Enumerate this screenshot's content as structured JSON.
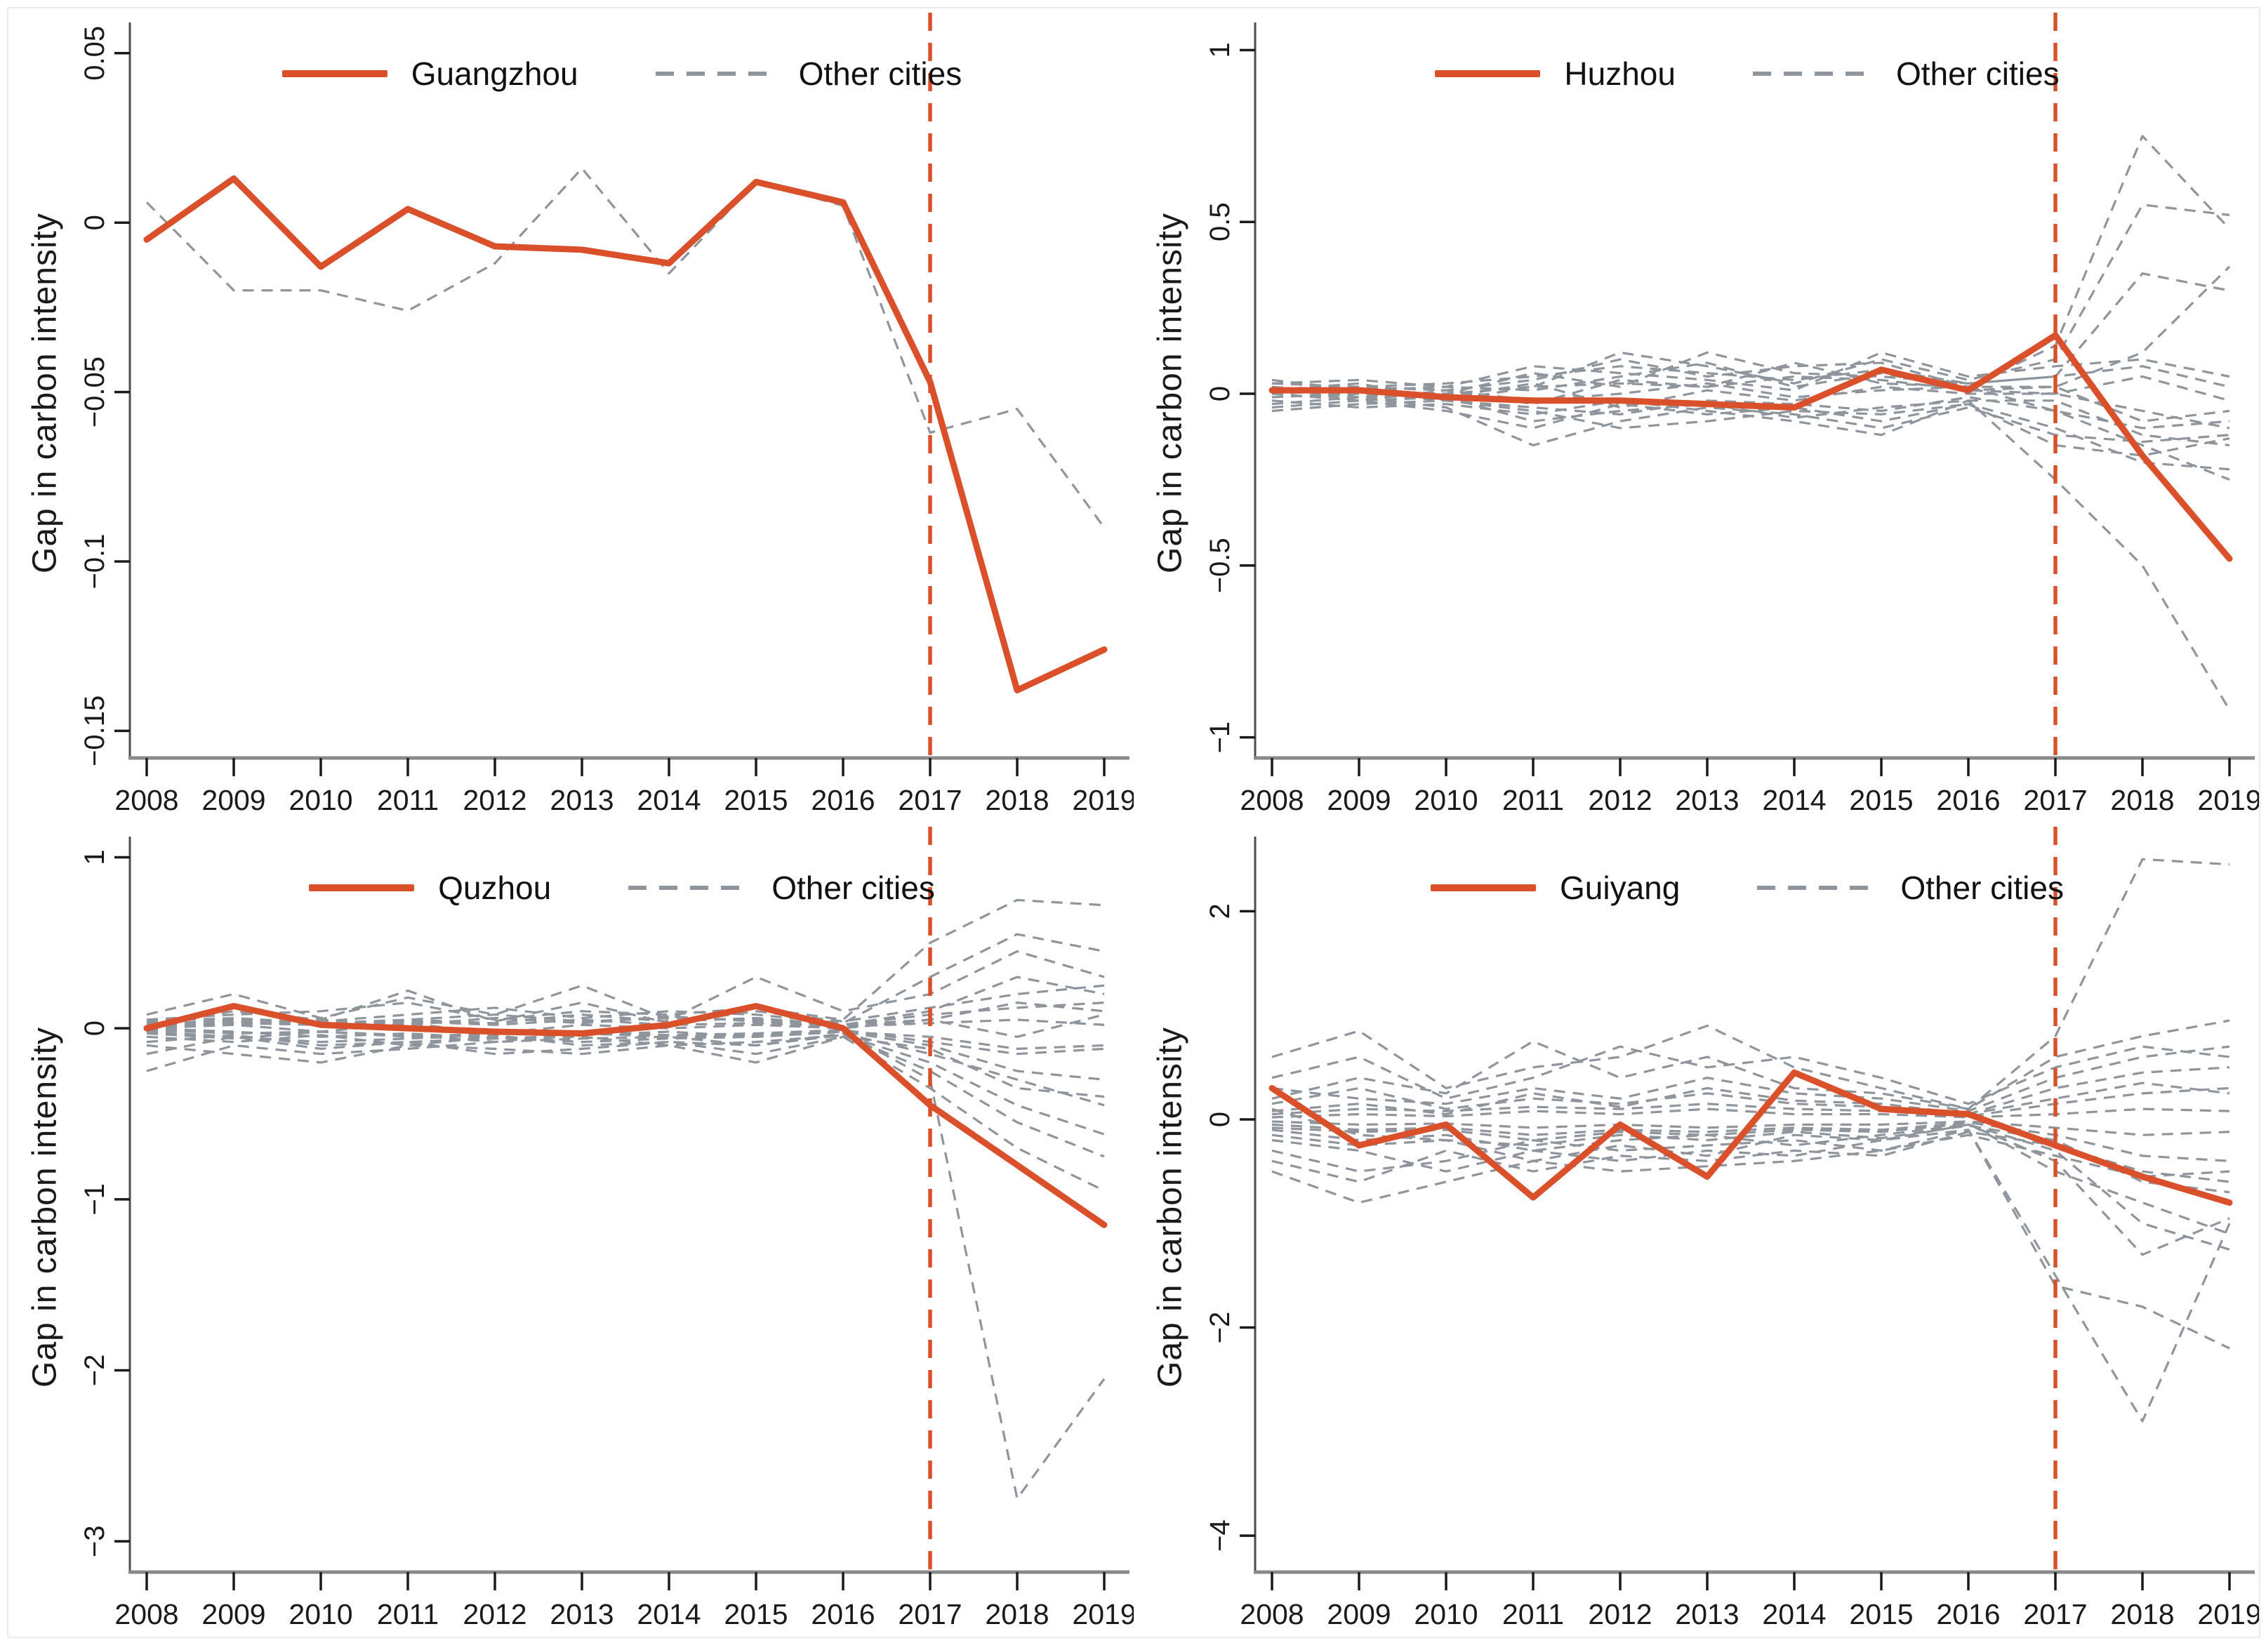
{
  "figure": {
    "x_years": [
      2008,
      2009,
      2010,
      2011,
      2012,
      2013,
      2014,
      2015,
      2016,
      2017,
      2018,
      2019
    ],
    "style": {
      "highlight": "#D9502B",
      "other": "#8F959C",
      "axis_line": "#8A8A8A",
      "axis_dark": "#4D4D4D",
      "tick": "#1A1A1A",
      "text": "#1A1A1A",
      "vline": "#D9502B",
      "background": "#FFFFFF",
      "frame": "#ECECEC"
    }
  },
  "chart_data": [
    {
      "type": "line",
      "name": "guangzhou",
      "legend_city": "Guangzhou",
      "legend_other": "Other cities",
      "ylabel": "Gap in carbon intensity",
      "xlabel": "",
      "legend_position": "top-center-inside",
      "x": [
        2008,
        2009,
        2010,
        2011,
        2012,
        2013,
        2014,
        2015,
        2016,
        2017,
        2018,
        2019
      ],
      "ylim": [
        -0.158,
        0.057
      ],
      "y_ticks": [
        {
          "v": 0.05,
          "label": "0.05"
        },
        {
          "v": 0,
          "label": "0"
        },
        {
          "v": -0.05,
          "label": "−0.05"
        },
        {
          "v": -0.1,
          "label": "−0.1"
        },
        {
          "v": -0.15,
          "label": "−0.15"
        }
      ],
      "vline_year": 2017,
      "city_values": [
        -0.005,
        0.013,
        -0.013,
        0.004,
        -0.007,
        -0.008,
        -0.012,
        0.012,
        0.006,
        -0.047,
        -0.138,
        -0.126
      ],
      "other_series": [
        [
          0.006,
          -0.02,
          -0.02,
          -0.026,
          -0.012,
          0.016,
          -0.015,
          0.012,
          0.005,
          -0.062,
          -0.055,
          -0.09
        ]
      ]
    },
    {
      "type": "line",
      "name": "huzhou",
      "legend_city": "Huzhou",
      "legend_other": "Other cities",
      "ylabel": "Gap in carbon intensity",
      "xlabel": "",
      "legend_position": "top-center-inside",
      "x": [
        2008,
        2009,
        2010,
        2011,
        2012,
        2013,
        2014,
        2015,
        2016,
        2017,
        2018,
        2019
      ],
      "ylim": [
        -1.06,
        1.06
      ],
      "y_ticks": [
        {
          "v": 1,
          "label": "1"
        },
        {
          "v": 0.5,
          "label": "0.5"
        },
        {
          "v": 0,
          "label": "0"
        },
        {
          "v": -0.5,
          "label": "−0.5"
        },
        {
          "v": -1,
          "label": "−1"
        }
      ],
      "vline_year": 2017,
      "city_values": [
        0.01,
        0.01,
        -0.01,
        -0.02,
        -0.02,
        -0.03,
        -0.04,
        0.07,
        0.01,
        0.17,
        -0.18,
        -0.48
      ],
      "other_series": [
        [
          0.03,
          0.02,
          0.01,
          0.04,
          0.1,
          0.05,
          0.08,
          0.09,
          0.02,
          0.14,
          0.75,
          0.48
        ],
        [
          0.01,
          0.03,
          -0.02,
          0.02,
          0.12,
          0.08,
          0.03,
          0.1,
          0.04,
          0.1,
          0.55,
          0.52
        ],
        [
          0.02,
          -0.01,
          0.0,
          0.06,
          0.02,
          0.12,
          0.06,
          0.05,
          0.03,
          0.05,
          0.35,
          0.3
        ],
        [
          0.0,
          0.02,
          0.01,
          -0.03,
          0.04,
          0.02,
          0.09,
          0.03,
          0.02,
          0.02,
          0.12,
          0.37
        ],
        [
          0.04,
          0.01,
          0.02,
          0.08,
          0.06,
          0.04,
          0.01,
          0.12,
          0.05,
          0.08,
          0.1,
          0.05
        ],
        [
          -0.02,
          -0.04,
          -0.03,
          -0.06,
          -0.02,
          -0.05,
          -0.08,
          -0.12,
          -0.02,
          -0.25,
          -0.5,
          -0.92
        ],
        [
          -0.01,
          0.0,
          -0.02,
          -0.04,
          -0.06,
          -0.02,
          -0.03,
          -0.05,
          -0.01,
          -0.05,
          -0.15,
          -0.25
        ],
        [
          0.0,
          -0.02,
          -0.05,
          -0.1,
          -0.03,
          -0.06,
          -0.04,
          -0.08,
          -0.03,
          -0.1,
          -0.2,
          -0.22
        ],
        [
          -0.03,
          -0.01,
          -0.04,
          -0.15,
          -0.08,
          -0.04,
          -0.06,
          -0.1,
          -0.04,
          -0.12,
          -0.14,
          -0.12
        ],
        [
          0.02,
          0.0,
          -0.01,
          0.03,
          -0.04,
          0.01,
          -0.02,
          0.02,
          0.0,
          0.0,
          -0.05,
          -0.1
        ],
        [
          0.01,
          0.02,
          0.03,
          0.05,
          0.08,
          0.06,
          0.04,
          0.07,
          0.03,
          0.05,
          0.08,
          0.02
        ],
        [
          -0.04,
          -0.02,
          -0.01,
          -0.08,
          -0.05,
          -0.03,
          -0.07,
          -0.04,
          -0.02,
          -0.02,
          -0.12,
          -0.15
        ],
        [
          0.03,
          0.04,
          0.02,
          0.01,
          0.05,
          0.09,
          0.02,
          0.06,
          0.01,
          0.02,
          -0.08,
          -0.05
        ],
        [
          -0.05,
          -0.03,
          -0.02,
          -0.05,
          -0.1,
          -0.08,
          -0.05,
          -0.06,
          -0.03,
          -0.15,
          -0.18,
          -0.13
        ],
        [
          0.0,
          0.01,
          0.0,
          0.02,
          0.03,
          0.02,
          0.05,
          0.04,
          0.01,
          0.0,
          0.05,
          -0.02
        ],
        [
          0.02,
          -0.02,
          0.01,
          -0.02,
          0.0,
          0.03,
          -0.01,
          0.01,
          0.02,
          -0.05,
          -0.1,
          -0.08
        ]
      ]
    },
    {
      "type": "line",
      "name": "quzhou",
      "legend_city": "Quzhou",
      "legend_other": "Other cities",
      "ylabel": "Gap in carbon intensity",
      "xlabel": "",
      "legend_position": "top-center-inside",
      "x": [
        2008,
        2009,
        2010,
        2011,
        2012,
        2013,
        2014,
        2015,
        2016,
        2017,
        2018,
        2019
      ],
      "ylim": [
        -3.18,
        1.08
      ],
      "y_ticks": [
        {
          "v": 1,
          "label": "1"
        },
        {
          "v": 0,
          "label": "0"
        },
        {
          "v": -1,
          "label": "−1"
        },
        {
          "v": -2,
          "label": "−2"
        },
        {
          "v": -3,
          "label": "−3"
        }
      ],
      "vline_year": 2017,
      "city_values": [
        0.0,
        0.13,
        0.02,
        0.0,
        -0.02,
        -0.03,
        0.02,
        0.13,
        0.0,
        -0.45,
        -0.8,
        -1.15
      ],
      "other_series": [
        [
          0.05,
          0.08,
          0.1,
          0.15,
          0.05,
          0.1,
          0.08,
          0.12,
          0.05,
          0.5,
          0.75,
          0.72
        ],
        [
          0.02,
          0.05,
          0.04,
          0.08,
          0.12,
          0.06,
          0.1,
          0.08,
          0.03,
          0.3,
          0.55,
          0.45
        ],
        [
          0.08,
          0.2,
          0.06,
          0.18,
          0.08,
          0.25,
          0.05,
          0.3,
          0.1,
          0.2,
          0.45,
          0.3
        ],
        [
          0.0,
          0.04,
          0.02,
          0.05,
          0.03,
          0.08,
          0.04,
          0.06,
          0.02,
          0.1,
          0.3,
          0.2
        ],
        [
          0.03,
          0.02,
          0.05,
          0.02,
          0.06,
          0.03,
          0.07,
          0.04,
          0.02,
          0.05,
          0.15,
          0.1
        ],
        [
          -0.05,
          -0.08,
          -0.04,
          -0.1,
          -0.05,
          -0.08,
          -0.06,
          -0.05,
          -0.02,
          -0.3,
          -2.75,
          -2.05
        ],
        [
          -0.02,
          -0.05,
          -0.08,
          -0.06,
          -0.04,
          -0.1,
          -0.08,
          -0.15,
          -0.05,
          -0.35,
          -0.7,
          -0.95
        ],
        [
          -0.08,
          -0.04,
          -0.1,
          -0.08,
          -0.06,
          -0.05,
          -0.1,
          -0.08,
          -0.04,
          -0.2,
          -0.45,
          -0.62
        ],
        [
          -0.25,
          -0.1,
          -0.15,
          -0.12,
          -0.08,
          -0.06,
          -0.05,
          -0.1,
          -0.03,
          -0.15,
          -0.3,
          -0.45
        ],
        [
          0.0,
          -0.02,
          -0.05,
          -0.03,
          -0.06,
          -0.04,
          -0.02,
          -0.05,
          -0.02,
          -0.1,
          -0.25,
          -0.3
        ],
        [
          0.04,
          0.06,
          0.03,
          0.05,
          0.08,
          0.04,
          0.06,
          0.05,
          0.02,
          0.08,
          0.12,
          0.15
        ],
        [
          -0.03,
          -0.06,
          -0.02,
          -0.04,
          -0.08,
          -0.03,
          -0.05,
          -0.04,
          -0.02,
          -0.05,
          -0.12,
          -0.1
        ],
        [
          0.02,
          0.1,
          0.05,
          0.22,
          0.04,
          0.15,
          0.03,
          0.1,
          0.04,
          0.12,
          0.2,
          0.25
        ],
        [
          -0.1,
          -0.15,
          -0.2,
          -0.1,
          -0.12,
          -0.15,
          -0.1,
          -0.2,
          -0.05,
          -0.12,
          -0.35,
          -0.4
        ],
        [
          0.01,
          0.03,
          0.02,
          0.04,
          0.02,
          0.05,
          0.02,
          0.03,
          0.01,
          0.03,
          0.05,
          0.02
        ],
        [
          -0.01,
          -0.03,
          -0.02,
          -0.05,
          -0.03,
          -0.02,
          -0.04,
          -0.03,
          -0.01,
          -0.08,
          -0.15,
          -0.12
        ],
        [
          0.0,
          0.02,
          -0.02,
          0.03,
          -0.03,
          0.02,
          0.0,
          0.02,
          0.0,
          0.05,
          -0.05,
          0.08
        ],
        [
          -0.15,
          -0.05,
          -0.12,
          -0.08,
          -0.15,
          -0.12,
          -0.08,
          -0.1,
          -0.04,
          -0.25,
          -0.55,
          -0.75
        ]
      ]
    },
    {
      "type": "line",
      "name": "guiyang",
      "legend_city": "Guiyang",
      "legend_other": "Other cities",
      "ylabel": "Gap in carbon intensity",
      "xlabel": "",
      "legend_position": "top-center-inside",
      "x": [
        2008,
        2009,
        2010,
        2011,
        2012,
        2013,
        2014,
        2015,
        2016,
        2017,
        2018,
        2019
      ],
      "ylim": [
        -4.35,
        2.65
      ],
      "y_ticks": [
        {
          "v": 2,
          "label": "2"
        },
        {
          "v": 0,
          "label": "0"
        },
        {
          "v": -2,
          "label": "−2"
        },
        {
          "v": -4,
          "label": "−4"
        }
      ],
      "vline_year": 2017,
      "city_values": [
        0.3,
        -0.25,
        -0.05,
        -0.75,
        -0.05,
        -0.55,
        0.45,
        0.1,
        0.05,
        -0.25,
        -0.55,
        -0.8
      ],
      "other_series": [
        [
          0.6,
          0.85,
          0.3,
          0.5,
          0.6,
          0.9,
          0.5,
          0.3,
          0.1,
          0.8,
          2.5,
          2.45
        ],
        [
          0.2,
          0.4,
          0.25,
          0.75,
          0.4,
          0.6,
          0.3,
          0.25,
          0.1,
          0.6,
          0.8,
          0.95
        ],
        [
          -0.3,
          -0.5,
          -0.4,
          -0.2,
          -0.3,
          -0.25,
          -0.2,
          -0.3,
          -0.1,
          -1.5,
          -2.9,
          -1.0
        ],
        [
          -0.2,
          -0.3,
          -0.5,
          -0.3,
          -0.4,
          -0.3,
          -0.35,
          -0.2,
          -0.1,
          -1.6,
          -1.8,
          -2.2
        ],
        [
          -0.1,
          -0.2,
          -0.15,
          -0.3,
          -0.2,
          -0.15,
          -0.25,
          -0.15,
          -0.05,
          -0.3,
          -1.0,
          -1.25
        ],
        [
          0.1,
          -0.15,
          -0.2,
          -0.4,
          -0.25,
          -0.35,
          -0.15,
          -0.2,
          -0.05,
          -0.4,
          -1.3,
          -0.95
        ],
        [
          0.3,
          0.2,
          0.15,
          0.3,
          0.2,
          0.4,
          0.25,
          0.2,
          0.08,
          0.4,
          0.6,
          0.7
        ],
        [
          -0.4,
          -0.6,
          -0.3,
          -0.5,
          -0.35,
          -0.4,
          -0.3,
          -0.35,
          -0.12,
          -0.25,
          -0.5,
          -0.6
        ],
        [
          0.15,
          0.3,
          0.1,
          0.2,
          0.15,
          0.25,
          0.15,
          0.12,
          0.05,
          0.3,
          0.45,
          0.5
        ],
        [
          -0.05,
          -0.1,
          -0.08,
          -0.15,
          -0.1,
          -0.12,
          -0.08,
          -0.1,
          -0.03,
          -0.15,
          -0.35,
          -0.4
        ],
        [
          0.05,
          0.1,
          0.08,
          0.12,
          0.1,
          0.15,
          0.1,
          0.08,
          0.03,
          0.15,
          0.25,
          0.3
        ],
        [
          -0.15,
          -0.25,
          -0.2,
          -0.25,
          -0.15,
          -0.2,
          -0.12,
          -0.18,
          -0.06,
          -0.2,
          -0.6,
          -0.7
        ],
        [
          0.08,
          0.15,
          0.05,
          0.25,
          0.12,
          0.3,
          0.18,
          0.15,
          0.05,
          0.2,
          0.35,
          0.25
        ],
        [
          -0.08,
          -0.12,
          -0.1,
          -0.2,
          -0.12,
          -0.15,
          -0.1,
          -0.12,
          -0.04,
          -0.5,
          -0.8,
          -1.1
        ],
        [
          0.02,
          0.05,
          0.03,
          0.08,
          0.05,
          0.1,
          0.05,
          0.05,
          0.02,
          0.05,
          0.1,
          0.08
        ],
        [
          -0.02,
          -0.05,
          -0.04,
          -0.08,
          -0.05,
          -0.08,
          -0.05,
          -0.05,
          -0.02,
          -0.08,
          -0.15,
          -0.12
        ],
        [
          0.4,
          0.6,
          0.2,
          0.4,
          0.7,
          0.5,
          0.6,
          0.4,
          0.15,
          0.5,
          0.7,
          0.6
        ],
        [
          -0.5,
          -0.8,
          -0.6,
          -0.4,
          -0.5,
          -0.45,
          -0.4,
          -0.3,
          -0.15,
          -0.35,
          -0.55,
          -0.5
        ]
      ]
    }
  ]
}
